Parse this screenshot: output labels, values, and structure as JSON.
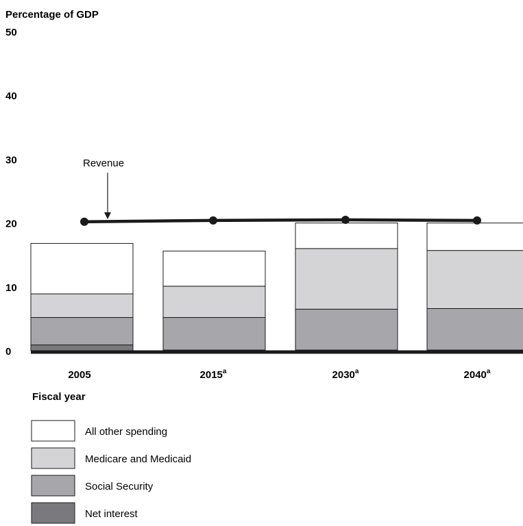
{
  "chart_data": {
    "type": "bar",
    "stacked": true,
    "ylabel": "Percentage of GDP",
    "xlabel": "Fiscal year",
    "ylim": [
      0,
      50
    ],
    "yticks": [
      "0",
      "10",
      "20",
      "30",
      "40",
      "50"
    ],
    "categories": [
      {
        "label": "2005",
        "sup": ""
      },
      {
        "label": "2015",
        "sup": "a"
      },
      {
        "label": "2030",
        "sup": "a"
      },
      {
        "label": "2040",
        "sup": "a"
      }
    ],
    "series": [
      {
        "name": "Net interest",
        "color": "#7a7a7e",
        "values": [
          0.9,
          0.1,
          0.1,
          0.1
        ]
      },
      {
        "name": "Social Security",
        "color": "#a7a7ab",
        "values": [
          4.3,
          5.1,
          6.4,
          6.5
        ]
      },
      {
        "name": "Medicare and Medicaid",
        "color": "#d4d4d6",
        "values": [
          3.7,
          4.9,
          9.5,
          9.1
        ]
      },
      {
        "name": "All other spending",
        "color": "#ffffff",
        "values": [
          7.9,
          5.5,
          4.0,
          4.3
        ]
      }
    ],
    "line_series": {
      "name": "Revenue",
      "values": [
        20.2,
        20.4,
        20.5,
        20.4
      ]
    },
    "annotation": "Revenue"
  }
}
